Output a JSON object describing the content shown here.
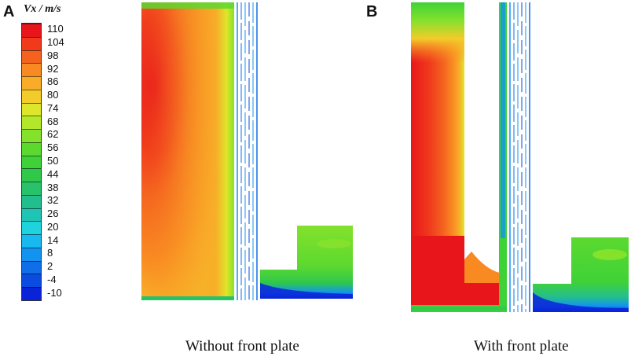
{
  "panels": [
    {
      "letter": "A",
      "caption": "Without front plate"
    },
    {
      "letter": "B",
      "caption": "With front plate"
    }
  ],
  "legend": {
    "title": "Vx / m/s",
    "levels": [
      "110",
      "104",
      "98",
      "92",
      "86",
      "80",
      "74",
      "68",
      "62",
      "56",
      "50",
      "44",
      "38",
      "32",
      "26",
      "20",
      "14",
      "8",
      "2",
      "-4",
      "-10"
    ],
    "colors": [
      "#e8161b",
      "#f03a1c",
      "#f4621f",
      "#f98a22",
      "#f8ac28",
      "#f3cc2a",
      "#dde62a",
      "#b3e82a",
      "#84e12c",
      "#5cd92f",
      "#3fd238",
      "#2fc84a",
      "#27c26a",
      "#23be8e",
      "#1fc4b4",
      "#1ed3de",
      "#18b9f0",
      "#1393f0",
      "#0f6ee8",
      "#0a4be0",
      "#0a23d8"
    ]
  }
}
